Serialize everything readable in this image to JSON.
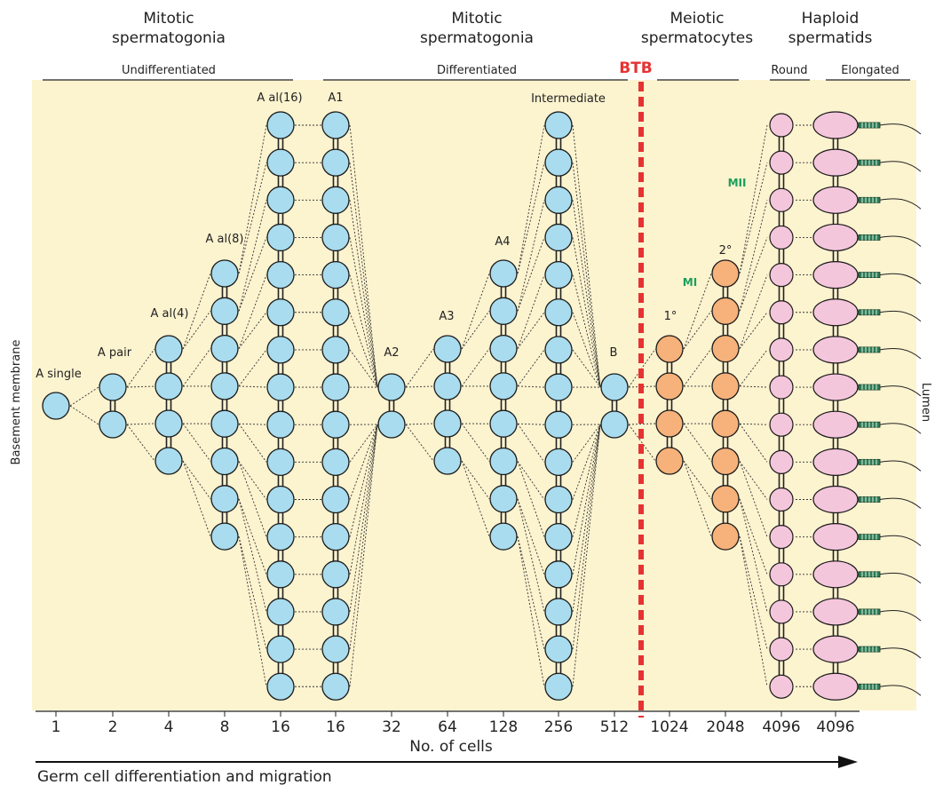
{
  "colors": {
    "background": "#fcf3cf",
    "mitotic_cell": "#a8dcee",
    "spermatocyte": "#f6b27a",
    "spermatid": "#f4c6dc",
    "btb": "#e63232",
    "meiosis_label": "#1a9e5a",
    "flagellum_segment": "#2e7d56"
  },
  "headers": [
    {
      "line1": "Mitotic",
      "line2": "spermatogonia"
    },
    {
      "line1": "Mitotic",
      "line2": "spermatogonia"
    },
    {
      "line1": "Meiotic",
      "line2": "spermatocytes"
    },
    {
      "line1": "Haploid",
      "line2": "spermatids"
    }
  ],
  "subheaders": {
    "undifferentiated": "Undifferentiated",
    "differentiated": "Differentiated",
    "round": "Round",
    "elongated": "Elongated"
  },
  "btb_label": "BTB",
  "basement_membrane": "Basement membrane",
  "lumen": "Lumen",
  "stage_labels": {
    "a_single": "A single",
    "a_pair": "A pair",
    "a_al4": "A al(4)",
    "a_al8": "A al(8)",
    "a_al16": "A al(16)",
    "a1": "A1",
    "a2": "A2",
    "a3": "A3",
    "a4": "A4",
    "intermediate": "Intermediate",
    "b": "B",
    "primary": "1°",
    "secondary": "2°",
    "mi": "MI",
    "mii": "MII"
  },
  "cell_counts": [
    "1",
    "2",
    "4",
    "8",
    "16",
    "16",
    "32",
    "64",
    "128",
    "256",
    "512",
    "1024",
    "2048",
    "4096",
    "4096"
  ],
  "xlabel": "No. of cells",
  "arrow_label": "Germ cell differentiation and migration"
}
